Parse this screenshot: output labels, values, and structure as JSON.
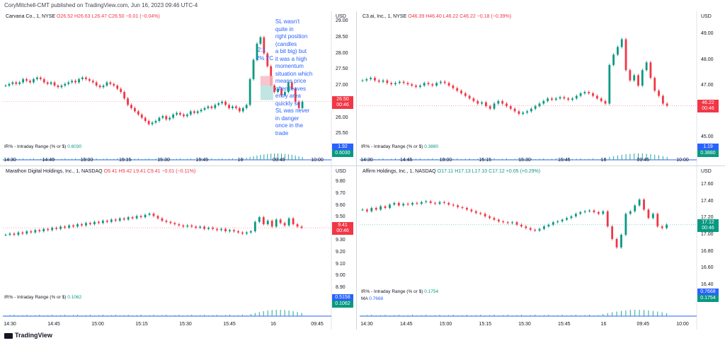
{
  "header": {
    "text": "CoryMitchell-CMT published on TradingView.com, Jun 16, 2023 09:46 UTC-4"
  },
  "footer": {
    "brand": "TradingView"
  },
  "colors": {
    "up": "#089981",
    "down": "#f23645",
    "ind": "#2962ff",
    "vol": "#26a69a"
  },
  "charts": [
    {
      "id": "cvna",
      "legend": {
        "name": "Carvana Co., 1, NYSE",
        "o": "O26.52",
        "h": "H26.63",
        "l": "L26.47",
        "c": "C26.50",
        "chg": "−0.01 (−0.04%)"
      },
      "currency": "USD",
      "price_ticks": [
        "29.00",
        "28.50",
        "28.00",
        "27.50",
        "27.00",
        "26.50",
        "26.00",
        "25.50",
        "25.00"
      ],
      "ymin": 25.0,
      "ymax": 29.0,
      "last_price": "26.50",
      "countdown": "00:46",
      "last_color": "#f23645",
      "x_ticks": [
        "14:30",
        "14:45",
        "15:00",
        "15:15",
        "15:30",
        "15:45",
        "16",
        "09:45",
        "10:00"
      ],
      "indicator": {
        "label": "IR% - Intraday Range (% or $)",
        "value": "0.6030",
        "tag_top": "1.92",
        "tag_bottom": "0.6030"
      },
      "annotation": {
        "ratio": "2:1",
        "tc": "2% TC",
        "lines": [
          "SL wasn't",
          "quite in",
          "right position",
          "(candles",
          "a bit big) but",
          "it was a high",
          "momentum",
          "situation which",
          "means price",
          "often leaves",
          "entry area",
          "quickly so",
          "SL was never",
          "in danger",
          "once in the",
          "trade"
        ]
      },
      "series": [
        27.0,
        27.05,
        27.1,
        27.05,
        27.1,
        27.2,
        27.15,
        27.1,
        27.2,
        27.25,
        27.2,
        27.1,
        27.05,
        27.1,
        27.0,
        26.95,
        27.0,
        27.05,
        27.1,
        27.15,
        27.1,
        27.2,
        27.25,
        27.2,
        27.15,
        27.1,
        27.0,
        26.95,
        27.0,
        27.1,
        27.05,
        27.0,
        26.9,
        26.8,
        26.6,
        26.4,
        26.3,
        26.2,
        26.1,
        26.0,
        25.9,
        25.8,
        25.85,
        25.9,
        26.0,
        26.05,
        25.95,
        26.0,
        26.1,
        26.15,
        26.1,
        26.05,
        26.1,
        26.2,
        26.15,
        26.2,
        26.25,
        26.3,
        26.35,
        26.3,
        26.4,
        26.45,
        26.5,
        26.4,
        26.3,
        26.35,
        26.3,
        26.2,
        26.3,
        26.4,
        27.2,
        27.8,
        28.3,
        28.5,
        28.0,
        27.6,
        27.0,
        26.8,
        26.9,
        26.7,
        26.8,
        27.1,
        26.9,
        26.5,
        26.3,
        26.5
      ]
    },
    {
      "id": "ai",
      "legend": {
        "name": "C3.ai, Inc., 1, NYSE",
        "o": "O46.39",
        "h": "H46.40",
        "l": "L46.22",
        "c": "C46.22",
        "chg": "−0.18 (−0.39%)"
      },
      "currency": "USD",
      "price_ticks": [
        "49.00",
        "48.00",
        "47.00",
        "46.00",
        "45.00"
      ],
      "ymin": 44.5,
      "ymax": 49.5,
      "last_price": "46.22",
      "countdown": "00:46",
      "last_color": "#f23645",
      "x_ticks": [
        "14:30",
        "14:45",
        "15:00",
        "15:15",
        "15:30",
        "15:45",
        "16",
        "09:45",
        "10:00"
      ],
      "indicator": {
        "label": "IR% - Intraday Range (% or $)",
        "value": "0.3880",
        "tag_top": "1.19",
        "tag_bottom": "0.3880"
      },
      "series": [
        47.2,
        47.25,
        47.3,
        47.2,
        47.15,
        47.2,
        47.1,
        47.05,
        47.1,
        47.15,
        47.1,
        47.05,
        47.0,
        46.95,
        47.0,
        47.1,
        47.05,
        47.0,
        47.1,
        47.15,
        47.1,
        47.0,
        46.9,
        46.8,
        46.7,
        46.6,
        46.5,
        46.4,
        46.3,
        46.35,
        46.2,
        46.1,
        46.3,
        46.4,
        46.3,
        46.2,
        46.1,
        46.0,
        45.9,
        45.95,
        46.0,
        46.1,
        46.2,
        46.3,
        46.4,
        46.5,
        46.45,
        46.5,
        46.55,
        46.5,
        46.45,
        46.5,
        46.6,
        46.7,
        46.75,
        46.7,
        46.6,
        46.5,
        46.4,
        46.3,
        47.8,
        48.2,
        48.5,
        48.8,
        47.6,
        47.2,
        47.4,
        47.0,
        47.6,
        47.9,
        47.3,
        46.8,
        46.6,
        46.3,
        46.22
      ]
    },
    {
      "id": "mara",
      "legend": {
        "name": "Marathon Digital Holdings, Inc., 1, NASDAQ",
        "o": "O9.41",
        "h": "H9.42",
        "l": "L9.41",
        "c": "C9.41",
        "chg": "−0.01 (−0.11%)"
      },
      "currency": "USD",
      "price_ticks": [
        "9.80",
        "9.70",
        "9.60",
        "9.50",
        "9.40",
        "9.30",
        "9.20",
        "9.10",
        "9.00",
        "8.90"
      ],
      "ymin": 8.85,
      "ymax": 9.85,
      "last_price": "9.41",
      "countdown": "00:46",
      "last_color": "#f23645",
      "x_ticks": [
        "14:30",
        "14:45",
        "15:00",
        "15:15",
        "15:30",
        "15:45",
        "16",
        "09:45"
      ],
      "indicator": {
        "label": "IR% - Intraday Range (% or $)",
        "value": "0.1062",
        "tag_top": "0.5158",
        "tag_bottom": "0.1062"
      },
      "series": [
        9.35,
        9.36,
        9.35,
        9.37,
        9.36,
        9.38,
        9.37,
        9.39,
        9.38,
        9.4,
        9.39,
        9.41,
        9.4,
        9.42,
        9.41,
        9.43,
        9.42,
        9.44,
        9.43,
        9.45,
        9.44,
        9.46,
        9.45,
        9.47,
        9.46,
        9.48,
        9.47,
        9.49,
        9.48,
        9.5,
        9.49,
        9.51,
        9.5,
        9.52,
        9.53,
        9.51,
        9.49,
        9.47,
        9.46,
        9.45,
        9.44,
        9.43,
        9.42,
        9.43,
        9.42,
        9.41,
        9.42,
        9.4,
        9.41,
        9.4,
        9.39,
        9.4,
        9.38,
        9.39,
        9.38,
        9.37,
        9.36,
        9.37,
        9.38,
        9.46,
        9.5,
        9.44,
        9.47,
        9.42,
        9.48,
        9.45,
        9.43,
        9.49,
        9.44,
        9.42,
        9.41
      ]
    },
    {
      "id": "afrm",
      "legend": {
        "name": "Affirm Holdings, Inc., 1, NASDAQ",
        "o": "O17.11",
        "h": "H17.13",
        "l": "L17.10",
        "c": "C17.12",
        "chg": "+0.05 (+0.29%)"
      },
      "currency": "USD",
      "price_ticks": [
        "17.60",
        "17.40",
        "17.20",
        "17.00",
        "16.80",
        "16.60",
        "16.40"
      ],
      "ymin": 16.3,
      "ymax": 17.7,
      "last_price": "17.12",
      "countdown": "00:46",
      "last_color": "#089981",
      "x_ticks": [
        "14:30",
        "14:45",
        "15:00",
        "15:15",
        "15:30",
        "15:45",
        "16",
        "09:45",
        "10:00"
      ],
      "indicator": {
        "label": "IR% - Intraday Range (% or $)",
        "value": "0.1754",
        "ma_label": "MA",
        "ma_value": "0.7668",
        "tag_top": "0.7668",
        "tag_bottom": "0.1754"
      },
      "series": [
        17.3,
        17.28,
        17.32,
        17.3,
        17.34,
        17.32,
        17.36,
        17.38,
        17.35,
        17.37,
        17.36,
        17.38,
        17.37,
        17.39,
        17.4,
        17.38,
        17.37,
        17.39,
        17.38,
        17.36,
        17.35,
        17.33,
        17.32,
        17.3,
        17.28,
        17.26,
        17.25,
        17.22,
        17.2,
        17.18,
        17.16,
        17.15,
        17.14,
        17.15,
        17.12,
        17.1,
        17.08,
        17.06,
        17.05,
        17.07,
        17.1,
        17.12,
        17.15,
        17.16,
        17.18,
        17.2,
        17.22,
        17.25,
        17.27,
        17.28,
        17.29,
        17.27,
        17.25,
        17.28,
        17.1,
        16.95,
        16.85,
        17.0,
        17.25,
        17.28,
        17.35,
        17.42,
        17.3,
        17.2,
        17.25,
        17.1,
        17.08,
        17.12
      ]
    }
  ]
}
